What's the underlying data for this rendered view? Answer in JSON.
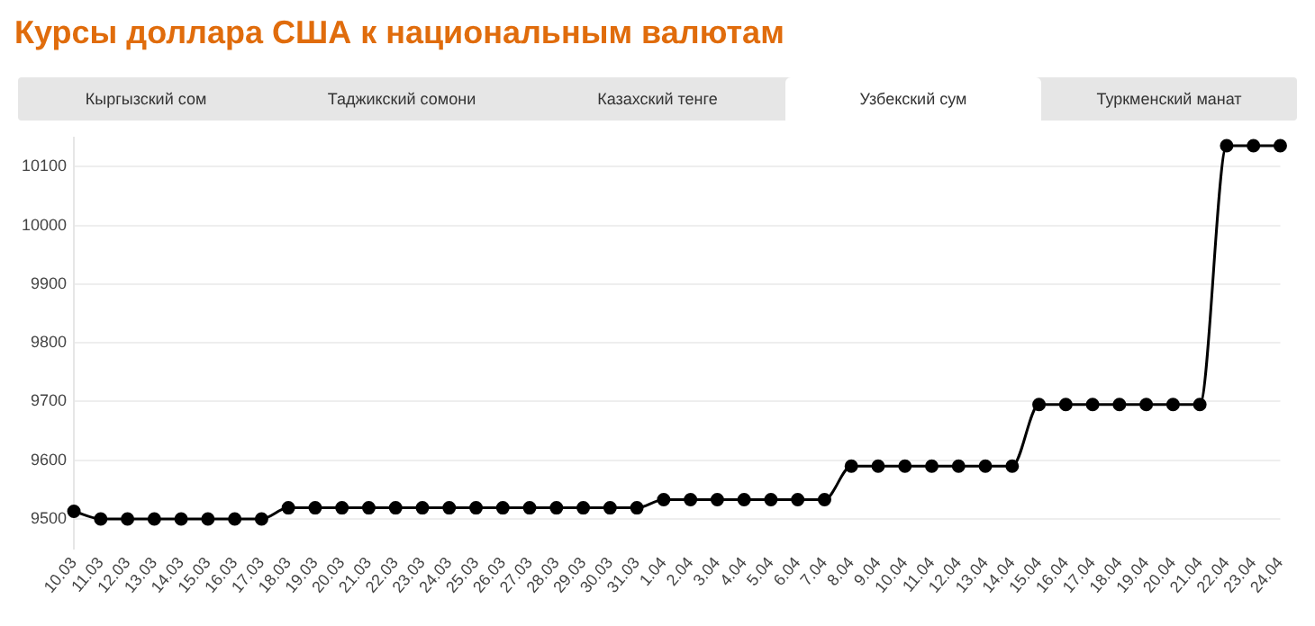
{
  "chart_data": {
    "type": "line",
    "title": "Курсы доллара США к национальным валютам",
    "annotations": [
      "Кыргызский сом",
      "Таджикский сомони",
      "Казахский тенге",
      "Узбекский сум",
      "Туркменский манат"
    ],
    "categories": [
      "10.03",
      "11.03",
      "12.03",
      "13.03",
      "14.03",
      "15.03",
      "16.03",
      "17.03",
      "18.03",
      "19.03",
      "20.03",
      "21.03",
      "22.03",
      "23.03",
      "24.03",
      "25.03",
      "26.03",
      "27.03",
      "28.03",
      "29.03",
      "30.03",
      "31.03",
      "1.04",
      "2.04",
      "3.04",
      "4.04",
      "5.04",
      "6.04",
      "7.04",
      "8.04",
      "9.04",
      "10.04",
      "11.04",
      "12.04",
      "13.04",
      "14.04",
      "15.04",
      "16.04",
      "17.04",
      "18.04",
      "19.04",
      "20.04",
      "21.04",
      "22.04",
      "23.04",
      "24.04"
    ],
    "series": [
      {
        "color": "#000000",
        "values": [
          9513,
          9500,
          9500,
          9500,
          9500,
          9500,
          9500,
          9500,
          9519,
          9519,
          9519,
          9519,
          9519,
          9519,
          9519,
          9519,
          9519,
          9519,
          9519,
          9519,
          9519,
          9519,
          9533,
          9533,
          9533,
          9533,
          9533,
          9533,
          9533,
          9590,
          9590,
          9590,
          9590,
          9590,
          9590,
          9590,
          9695,
          9695,
          9695,
          9695,
          9695,
          9695,
          9695,
          10136,
          10136,
          10136
        ]
      }
    ],
    "ylim": [
      9450,
      10150
    ],
    "yticks": [
      9500,
      9600,
      9700,
      9800,
      9900,
      10000,
      10100
    ],
    "grid": "y",
    "legend": false,
    "marker": "circle",
    "line_style": "solid"
  }
}
